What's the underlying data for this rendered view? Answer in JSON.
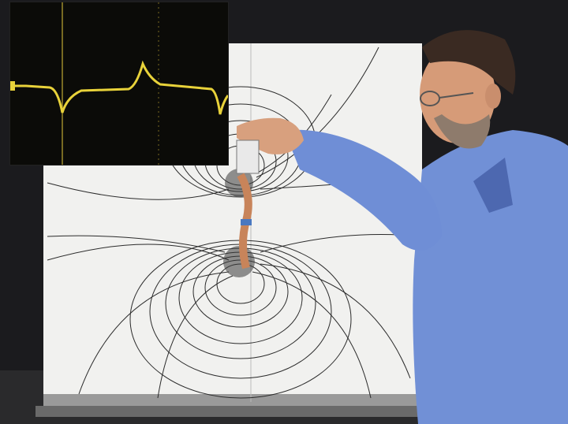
{
  "scene": {
    "description_colors": {
      "backdrop": "#1a1a1c",
      "board": "#f2f2f0",
      "field_lines": "#2a2a2a",
      "scope_bg": "#0b0b08",
      "scope_trace": "#e8d23a",
      "shirt": "#6f8fd8",
      "skin": "#d8a07e",
      "hair": "#3a2a22",
      "copper": "#c8845a"
    },
    "icons": [
      "oscilloscope-trace",
      "bar-magnet-field-diagram",
      "copper-coil-probe"
    ]
  }
}
